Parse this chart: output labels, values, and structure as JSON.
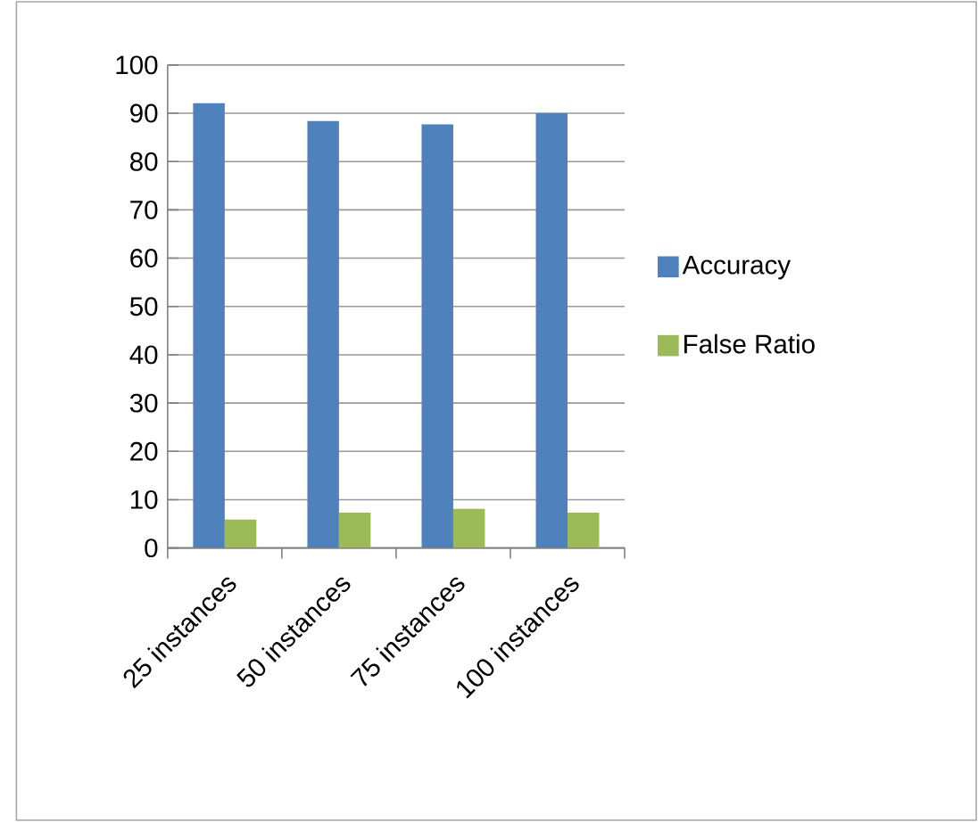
{
  "chart_data": {
    "type": "bar",
    "categories": [
      "25 instances",
      "50 instances",
      "75 instances",
      "100 instances"
    ],
    "series": [
      {
        "name": "Accuracy",
        "color": "#4f81bd",
        "values": [
          92.1,
          88.4,
          87.7,
          90.0
        ]
      },
      {
        "name": "False Ratio",
        "color": "#9bbb59",
        "values": [
          5.9,
          7.3,
          8.1,
          7.3
        ]
      }
    ],
    "ylim": [
      0,
      100
    ],
    "yticks": [
      0,
      10,
      20,
      30,
      40,
      50,
      60,
      70,
      80,
      90,
      100
    ],
    "grid": "y",
    "legend": "right"
  }
}
